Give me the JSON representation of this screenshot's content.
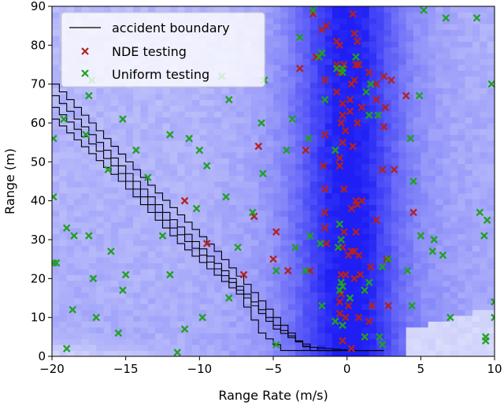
{
  "chart_data": {
    "type": "scatter",
    "xlabel": "Range Rate (m/s)",
    "ylabel": "Range (m)",
    "xlim": [
      -20,
      10
    ],
    "ylim": [
      0,
      90
    ],
    "x_ticks": [
      "−20",
      "−15",
      "−10",
      "−5",
      "0",
      "5",
      "10"
    ],
    "y_ticks": [
      "0",
      "10",
      "20",
      "30",
      "40",
      "50",
      "60",
      "70",
      "80",
      "90"
    ],
    "grid": false,
    "legend_position": "top-left",
    "legend": [
      "accident boundary",
      "NDE testing",
      "Uniform testing"
    ],
    "background": "heatmap of naturalistic testing density, darkest near range rate 0 m/s",
    "series": [
      {
        "name": "accident boundary",
        "kind": "step-lines",
        "lines": [
          [
            [
              -20,
              70
            ],
            [
              -17,
              58
            ],
            [
              -13,
              42
            ],
            [
              -9,
              27
            ],
            [
              -5,
              10
            ],
            [
              -3.5,
              4
            ],
            [
              -2,
              1.5
            ],
            [
              -0.5,
              1.5
            ]
          ],
          [
            [
              -20,
              67
            ],
            [
              -16.5,
              53
            ],
            [
              -12.5,
              37
            ],
            [
              -8.5,
              22
            ],
            [
              -5,
              8
            ],
            [
              -3,
              2.5
            ],
            [
              0,
              1.5
            ],
            [
              1.5,
              1.5
            ]
          ],
          [
            [
              -20,
              64
            ],
            [
              -16,
              49
            ],
            [
              -12,
              33
            ],
            [
              -8,
              19
            ],
            [
              -5,
              7
            ],
            [
              -2.5,
              1.5
            ],
            [
              1,
              1.5
            ],
            [
              2.5,
              1.5
            ]
          ],
          [
            [
              -20,
              61
            ],
            [
              -15.5,
              45
            ],
            [
              -11.5,
              29
            ],
            [
              -7.5,
              16
            ],
            [
              -6,
              6
            ],
            [
              -4.5,
              1.5
            ],
            [
              0.5,
              1.5
            ],
            [
              2.5,
              1.5
            ]
          ]
        ]
      },
      {
        "name": "NDE testing",
        "color": "#b22222",
        "points": [
          [
            -2.3,
            88
          ],
          [
            -1.7,
            84
          ],
          [
            -1.4,
            85
          ],
          [
            -0.7,
            81
          ],
          [
            -0.5,
            80
          ],
          [
            0.4,
            88
          ],
          [
            0.5,
            83
          ],
          [
            0.7,
            81
          ],
          [
            -3.2,
            74
          ],
          [
            -2.1,
            77
          ],
          [
            -0.7,
            75
          ],
          [
            -0.2,
            75
          ],
          [
            0.6,
            75
          ],
          [
            0.8,
            75
          ],
          [
            1.5,
            73
          ],
          [
            2.0,
            70
          ],
          [
            2.5,
            72
          ],
          [
            3.0,
            71
          ],
          [
            -0.5,
            73
          ],
          [
            -1.5,
            71
          ],
          [
            -0.7,
            68
          ],
          [
            0.5,
            71
          ],
          [
            -0.3,
            65
          ],
          [
            0.2,
            66
          ],
          [
            0.3,
            70
          ],
          [
            1.0,
            64
          ],
          [
            2.0,
            66
          ],
          [
            2.6,
            64
          ],
          [
            4.0,
            67
          ],
          [
            -0.3,
            62
          ],
          [
            0.2,
            63
          ],
          [
            -0.4,
            60
          ],
          [
            -0.1,
            58
          ],
          [
            0.7,
            60
          ],
          [
            2.5,
            59
          ],
          [
            -1.5,
            57
          ],
          [
            -0.3,
            55
          ],
          [
            0.4,
            54
          ],
          [
            -6.0,
            54
          ],
          [
            -2.8,
            53
          ],
          [
            -0.5,
            51
          ],
          [
            -1.6,
            49
          ],
          [
            -0.5,
            49
          ],
          [
            2.4,
            48
          ],
          [
            3.2,
            48
          ],
          [
            -0.2,
            43
          ],
          [
            -1.5,
            43
          ],
          [
            1.0,
            40
          ],
          [
            0.6,
            40
          ],
          [
            0.3,
            38
          ],
          [
            -11.0,
            40
          ],
          [
            -6.3,
            36
          ],
          [
            -1.5,
            37
          ],
          [
            0.7,
            39
          ],
          [
            2.0,
            35
          ],
          [
            4.5,
            37
          ],
          [
            -4.8,
            32
          ],
          [
            -1.5,
            33
          ],
          [
            -0.2,
            32
          ],
          [
            0.6,
            32
          ],
          [
            -9.5,
            29
          ],
          [
            -1.4,
            29
          ],
          [
            -0.3,
            28
          ],
          [
            0.3,
            27
          ],
          [
            0.1,
            26
          ],
          [
            0.5,
            27
          ],
          [
            0.8,
            26
          ],
          [
            -5.0,
            25
          ],
          [
            -4.0,
            22
          ],
          [
            -2.5,
            22
          ],
          [
            -0.4,
            21
          ],
          [
            -0.1,
            21
          ],
          [
            0.5,
            20
          ],
          [
            0.9,
            21
          ],
          [
            1.6,
            23
          ],
          [
            2.7,
            25
          ],
          [
            -7.0,
            21
          ],
          [
            -0.4,
            16
          ],
          [
            -0.5,
            14
          ],
          [
            0.1,
            13
          ],
          [
            1.7,
            13
          ],
          [
            2.8,
            13
          ],
          [
            -0.5,
            11
          ],
          [
            -0.1,
            10
          ],
          [
            0.8,
            10
          ],
          [
            1.5,
            9
          ],
          [
            1.2,
            5
          ],
          [
            -0.3,
            4
          ],
          [
            0.3,
            2
          ]
        ]
      },
      {
        "name": "Uniform testing",
        "color": "#22a022",
        "points": [
          [
            -2.3,
            89
          ],
          [
            -3.2,
            82
          ],
          [
            -14.5,
            73
          ],
          [
            -0.3,
            74
          ],
          [
            -1.7,
            78
          ],
          [
            -1.9,
            77
          ],
          [
            5.2,
            89
          ],
          [
            6.7,
            87
          ],
          [
            8.8,
            87
          ],
          [
            9.8,
            70
          ],
          [
            -8.5,
            72
          ],
          [
            -17.3,
            71
          ],
          [
            -5.6,
            71
          ],
          [
            -17.5,
            67
          ],
          [
            -8.0,
            66
          ],
          [
            -1.5,
            66
          ],
          [
            -17.7,
            57
          ],
          [
            -15.2,
            61
          ],
          [
            -14.3,
            53
          ],
          [
            -10.7,
            56
          ],
          [
            -10.0,
            53
          ],
          [
            -12.0,
            57
          ],
          [
            -16.2,
            48
          ],
          [
            -13.5,
            46
          ],
          [
            -9.5,
            49
          ],
          [
            -5.7,
            47
          ],
          [
            -4.1,
            53
          ],
          [
            1.5,
            62
          ],
          [
            2.1,
            62
          ],
          [
            4.9,
            67
          ],
          [
            1.3,
            68
          ],
          [
            1.6,
            70
          ],
          [
            -0.7,
            74
          ],
          [
            0.6,
            77
          ],
          [
            -0.3,
            73
          ],
          [
            -5.8,
            60
          ],
          [
            -2.6,
            56
          ],
          [
            -3.7,
            61
          ],
          [
            -19.9,
            56
          ],
          [
            -19.2,
            61
          ],
          [
            -19.9,
            41
          ],
          [
            -19.0,
            33
          ],
          [
            -18.5,
            31
          ],
          [
            -17.5,
            31
          ],
          [
            -16.0,
            27
          ],
          [
            -12.5,
            31
          ],
          [
            -10.2,
            38
          ],
          [
            -8.2,
            41
          ],
          [
            -6.4,
            37
          ],
          [
            -2.5,
            31
          ],
          [
            -0.5,
            34
          ],
          [
            -0.4,
            30
          ],
          [
            -0.6,
            28
          ],
          [
            -7.4,
            28
          ],
          [
            -3.5,
            28
          ],
          [
            -4.8,
            22
          ],
          [
            -2.8,
            22
          ],
          [
            -12.0,
            21
          ],
          [
            -15.0,
            21
          ],
          [
            -15.2,
            17
          ],
          [
            -17.2,
            20
          ],
          [
            -19.7,
            24
          ],
          [
            -19.9,
            24
          ],
          [
            -18.6,
            12
          ],
          [
            -17.0,
            10
          ],
          [
            -15.5,
            6
          ],
          [
            -19.0,
            2
          ],
          [
            -11.5,
            1
          ],
          [
            -11.0,
            7
          ],
          [
            -9.8,
            10
          ],
          [
            -8.0,
            15
          ],
          [
            -0.5,
            17
          ],
          [
            -0.4,
            19
          ],
          [
            -0.3,
            18
          ],
          [
            1.2,
            17
          ],
          [
            1.5,
            19
          ],
          [
            2.8,
            25
          ],
          [
            4.1,
            22
          ],
          [
            2.4,
            23
          ],
          [
            4.4,
            13
          ],
          [
            -1.7,
            13
          ],
          [
            0.2,
            15
          ],
          [
            -0.8,
            9
          ],
          [
            -0.3,
            8
          ],
          [
            2.2,
            5
          ],
          [
            1.2,
            5
          ],
          [
            7.0,
            10
          ],
          [
            9.3,
            31
          ],
          [
            9.0,
            37
          ],
          [
            9.5,
            35
          ],
          [
            10.0,
            14
          ],
          [
            10.0,
            10
          ],
          [
            9.4,
            5
          ],
          [
            9.4,
            4
          ],
          [
            5.0,
            31
          ],
          [
            6.5,
            26
          ],
          [
            5.9,
            30
          ],
          [
            4.5,
            45
          ],
          [
            5.8,
            27
          ],
          [
            -4.8,
            3
          ],
          [
            2.4,
            3
          ],
          [
            -1.8,
            29
          ],
          [
            -0.8,
            53
          ],
          [
            4.3,
            56
          ]
        ]
      }
    ]
  }
}
